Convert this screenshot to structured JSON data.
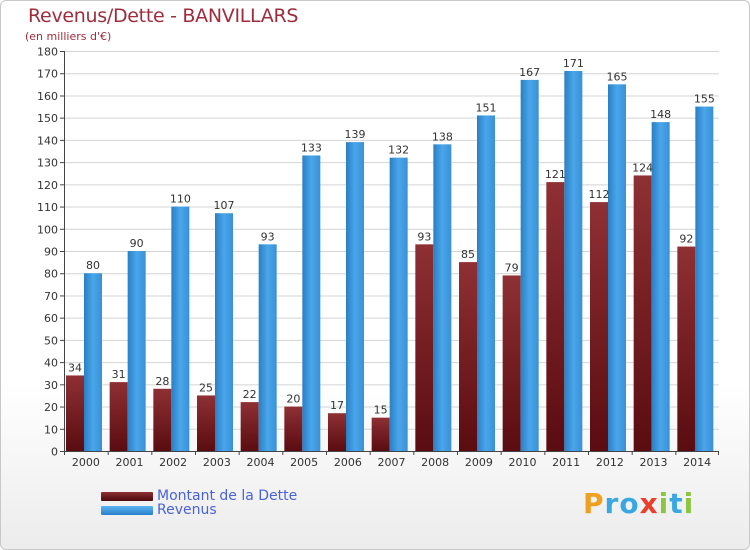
{
  "title": "Revenus/Dette - BANVILLARS",
  "subtitle": "(en milliers d'€)",
  "logo_text": "Proxiti",
  "colors": {
    "debt": "#7a1e22",
    "revenue": "#3d9ae0",
    "title": "#9e2c3c",
    "legend_text": "#4a62d8"
  },
  "chart_data": {
    "type": "bar",
    "title": "Revenus/Dette - BANVILLARS",
    "subtitle": "(en milliers d'€)",
    "xlabel": "",
    "ylabel": "",
    "ylim": [
      0,
      180
    ],
    "yticks": [
      0,
      10,
      20,
      30,
      40,
      50,
      60,
      70,
      80,
      90,
      100,
      110,
      120,
      130,
      140,
      150,
      160,
      170,
      180
    ],
    "grid": true,
    "legend_position": "bottom-left",
    "categories": [
      "2000",
      "2001",
      "2002",
      "2003",
      "2004",
      "2005",
      "2006",
      "2007",
      "2008",
      "2009",
      "2010",
      "2011",
      "2012",
      "2013",
      "2014"
    ],
    "series": [
      {
        "name": "Montant de la Dette",
        "color": "#7a1e22",
        "values": [
          34,
          31,
          28,
          25,
          22,
          20,
          17,
          15,
          93,
          85,
          79,
          121,
          112,
          124,
          92
        ]
      },
      {
        "name": "Revenus",
        "color": "#3d9ae0",
        "values": [
          80,
          90,
          110,
          107,
          93,
          133,
          139,
          132,
          138,
          151,
          167,
          171,
          165,
          148,
          155
        ]
      }
    ]
  }
}
